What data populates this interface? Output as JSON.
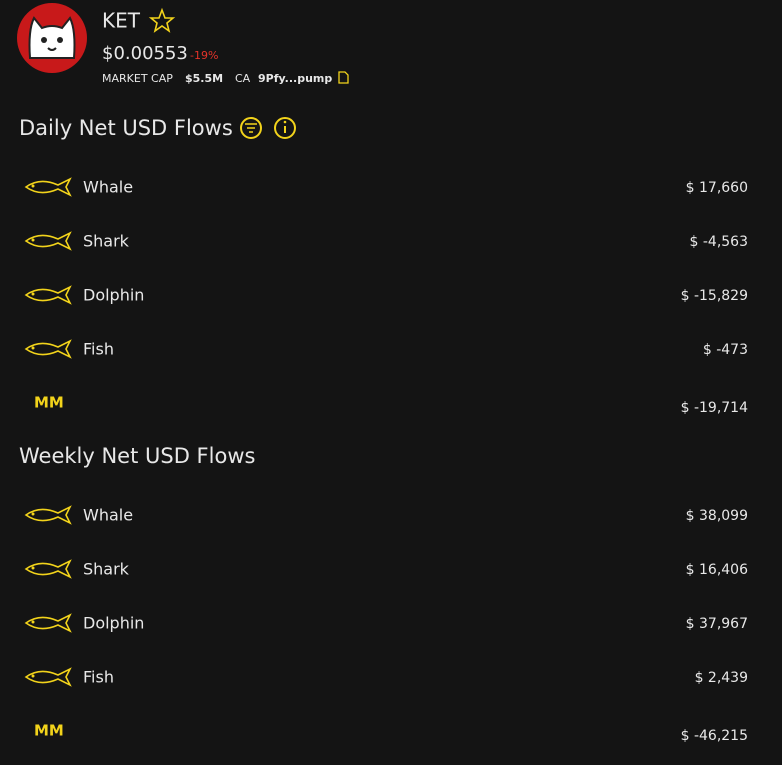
{
  "header": {
    "symbol": "KET",
    "price": "$0.00553",
    "change": "-19%",
    "market_cap_label": "MARKET CAP",
    "market_cap": "$5.5M",
    "ca_label": "CA",
    "ca": "9Pfy...pump"
  },
  "sections": [
    {
      "title": "Daily Net USD Flows",
      "rows": [
        {
          "name": "Whale",
          "value": 17660,
          "value_label": "$ 17,660"
        },
        {
          "name": "Shark",
          "value": -4563,
          "value_label": "$ -4,563"
        },
        {
          "name": "Dolphin",
          "value": -15829,
          "value_label": "$ -15,829"
        },
        {
          "name": "Fish",
          "value": -473,
          "value_label": "$ -473"
        },
        {
          "badge": "MM",
          "value": -19714,
          "value_label": "$ -19,714"
        }
      ]
    },
    {
      "title": "Weekly Net USD Flows",
      "rows": [
        {
          "name": "Whale",
          "value": 38099,
          "value_label": "$ 38,099"
        },
        {
          "name": "Shark",
          "value": 16406,
          "value_label": "$ 16,406"
        },
        {
          "name": "Dolphin",
          "value": 37967,
          "value_label": "$ 37,967"
        },
        {
          "name": "Fish",
          "value": 2439,
          "value_label": "$ 2,439"
        },
        {
          "badge": "MM",
          "value": -46215,
          "value_label": "$ -46,215"
        }
      ]
    }
  ],
  "colors": {
    "positive": "#2ee86f",
    "negative": "#d63a26"
  }
}
